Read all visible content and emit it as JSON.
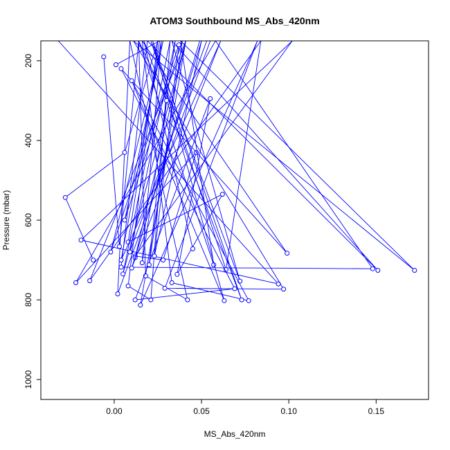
{
  "chart_data": {
    "type": "line",
    "title": "ATOM3 Southbound MS_Abs_420nm",
    "xlabel": "MS_Abs_420nm",
    "ylabel": "Pressure (mbar)",
    "xlim": [
      -0.042,
      0.18
    ],
    "ylim": [
      1050,
      150
    ],
    "y_axis_inverted": true,
    "xticks": [
      0.0,
      0.05,
      0.1,
      0.15
    ],
    "xtick_labels": [
      "0.00",
      "0.05",
      "0.10",
      "0.15"
    ],
    "yticks": [
      200,
      400,
      600,
      800,
      1000
    ],
    "ytick_labels": [
      "200",
      "400",
      "600",
      "800",
      "1000"
    ],
    "grid": false,
    "legend": "none",
    "marker": "open-circle",
    "series_color": "#0000ff",
    "series": [
      {
        "x": [
          -0.032,
          0.094,
          -0.019,
          0.102,
          0.012,
          0.028,
          0.047,
          -0.022,
          0.058,
          0.148,
          0.004,
          0.019,
          0.151,
          0.033,
          0.072,
          0.021,
          0.064,
          0.084,
          -0.014,
          0.041,
          0.012,
          0.049
        ],
        "y": [
          150,
          760,
          650,
          150,
          690,
          700,
          430,
          757,
          150,
          722,
          718,
          150,
          726,
          150,
          753,
          150,
          724,
          150,
          752,
          150,
          694,
          150
        ]
      },
      {
        "x": [
          -0.012,
          -0.028,
          0.006,
          0.025,
          0.008,
          0.021,
          0.032,
          0.005,
          0.041,
          0.015,
          0.082,
          0.029,
          0.097,
          0.011,
          0.172,
          0.038,
          0.057,
          0.014,
          0.018,
          0.042,
          0.009,
          0.002,
          0.055,
          0.007
        ],
        "y": [
          700,
          543,
          430,
          150,
          765,
          800,
          150,
          735,
          150,
          813,
          150,
          771,
          773,
          150,
          726,
          150,
          712,
          150,
          740,
          800,
          150,
          785,
          150,
          150
        ]
      },
      {
        "x": [
          0.001,
          0.026,
          0.008,
          0.062,
          0.036,
          0.055,
          0.012,
          0.069,
          0.004,
          0.099,
          0.016,
          0.033,
          0.077,
          0.01,
          0.063,
          0.022,
          0.073,
          0.017,
          0.045
        ],
        "y": [
          210,
          150,
          655,
          535,
          736,
          295,
          800,
          772,
          220,
          683,
          150,
          757,
          802,
          250,
          802,
          150,
          800,
          150,
          672
        ]
      },
      {
        "x": [
          -0.006,
          0.003,
          0.014,
          0.03,
          0.02,
          0.039,
          0.006,
          0.028,
          -0.002,
          0.037,
          0.023,
          0.05,
          0.01,
          0.061,
          0.004,
          0.027,
          0.016,
          0.035,
          0.009,
          0.053
        ],
        "y": [
          190,
          666,
          150,
          300,
          712,
          150,
          600,
          150,
          680,
          160,
          690,
          150,
          720,
          150,
          700,
          150,
          707,
          150,
          680,
          150
        ]
      }
    ]
  }
}
